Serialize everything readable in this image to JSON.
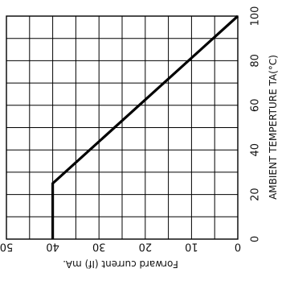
{
  "chart_data": {
    "type": "line",
    "title": "",
    "xlabel": "AMBIENT TEMPERTURE TA(°C)",
    "ylabel": "Forward current (If) mA.",
    "xlim": [
      0,
      100
    ],
    "ylim": [
      0,
      50
    ],
    "x_ticks": [
      "0",
      "20",
      "40",
      "60",
      "80",
      "100"
    ],
    "y_ticks": [
      "0",
      "10",
      "20",
      "30",
      "40",
      "50"
    ],
    "grid": true,
    "orientation": "rotated 90° clockwise (temperature runs bottom-to-top on the right, current runs right-to-left at the bottom)",
    "series": [
      {
        "points": [
          [
            0,
            40
          ],
          [
            25,
            40
          ],
          [
            100,
            0
          ]
        ],
        "color": "#000000"
      }
    ]
  }
}
